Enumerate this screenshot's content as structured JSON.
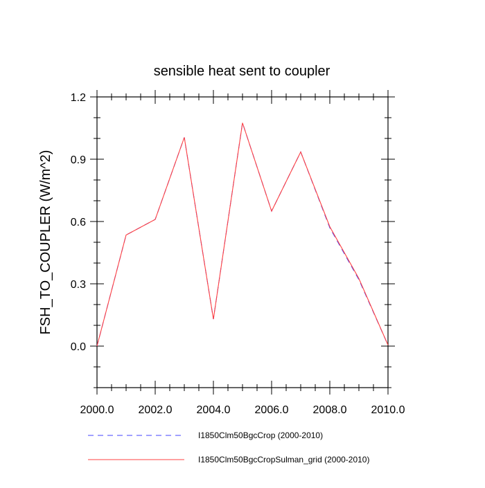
{
  "chart_data": {
    "type": "line",
    "title": "sensible heat sent to coupler",
    "xlabel": "",
    "ylabel": "FSH_TO_COUPLER  (W/m^2)",
    "xlim": [
      2000,
      2010
    ],
    "ylim": [
      -0.2,
      1.2
    ],
    "x_ticks": [
      2000,
      2002,
      2004,
      2006,
      2008,
      2010
    ],
    "x_tick_labels": [
      "2000.0",
      "2002.0",
      "2004.0",
      "2006.0",
      "2008.0",
      "2010.0"
    ],
    "y_ticks": [
      0.0,
      0.3,
      0.6,
      0.9,
      1.2
    ],
    "y_tick_labels": [
      "0.0",
      "0.3",
      "0.6",
      "0.9",
      "1.2"
    ],
    "grid": false,
    "legend_position": "bottom",
    "x": [
      2000,
      2001,
      2002,
      2003,
      2004,
      2005,
      2006,
      2007,
      2008,
      2009,
      2010
    ],
    "series": [
      {
        "name": "I1850Clm50BgcCrop (2000-2010)",
        "color": "#4040ff",
        "dash": "dashed",
        "values": [
          0.0,
          0.535,
          0.61,
          1.005,
          0.13,
          1.075,
          0.65,
          0.935,
          0.57,
          0.32,
          0.005
        ]
      },
      {
        "name": "I1850Clm50BgcCropSulman_grid (2000-2010)",
        "color": "#ff4040",
        "dash": "solid",
        "values": [
          0.0,
          0.535,
          0.61,
          1.005,
          0.13,
          1.075,
          0.65,
          0.935,
          0.575,
          0.325,
          0.005
        ]
      }
    ]
  }
}
